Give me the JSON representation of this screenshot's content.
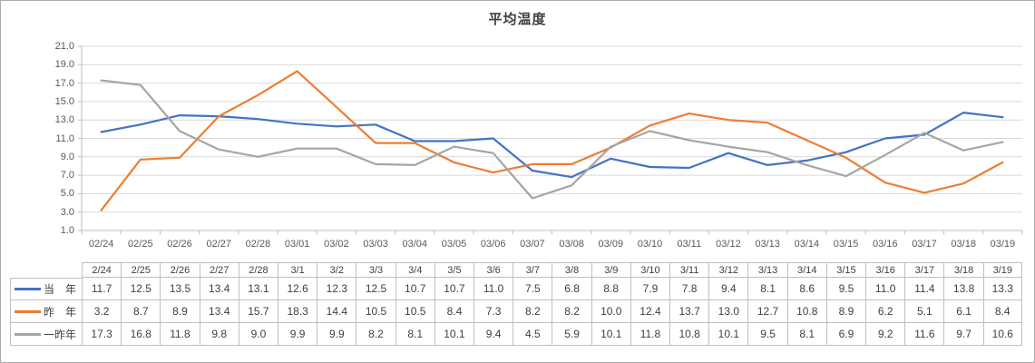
{
  "chart_data": {
    "type": "line",
    "title": "平均温度",
    "x_axis_labels": [
      "02/24",
      "02/25",
      "02/26",
      "02/27",
      "02/28",
      "03/01",
      "03/02",
      "03/03",
      "03/04",
      "03/05",
      "03/06",
      "03/07",
      "03/08",
      "03/09",
      "03/10",
      "03/11",
      "03/12",
      "03/13",
      "03/14",
      "03/15",
      "03/16",
      "03/17",
      "03/18",
      "03/19"
    ],
    "table_columns": [
      "2/24",
      "2/25",
      "2/26",
      "2/27",
      "2/28",
      "3/1",
      "3/2",
      "3/3",
      "3/4",
      "3/5",
      "3/6",
      "3/7",
      "3/8",
      "3/9",
      "3/10",
      "3/11",
      "3/12",
      "3/13",
      "3/14",
      "3/15",
      "3/16",
      "3/17",
      "3/18",
      "3/19"
    ],
    "series": [
      {
        "name": "当　年",
        "color": "#4472C4",
        "values": [
          11.7,
          12.5,
          13.5,
          13.4,
          13.1,
          12.6,
          12.3,
          12.5,
          10.7,
          10.7,
          11.0,
          7.5,
          6.8,
          8.8,
          7.9,
          7.8,
          9.4,
          8.1,
          8.6,
          9.5,
          11.0,
          11.4,
          13.8,
          13.3
        ]
      },
      {
        "name": "昨　年",
        "color": "#ED7D31",
        "values": [
          3.2,
          8.7,
          8.9,
          13.4,
          15.7,
          18.3,
          14.4,
          10.5,
          10.5,
          8.4,
          7.3,
          8.2,
          8.2,
          10.0,
          12.4,
          13.7,
          13.0,
          12.7,
          10.8,
          8.9,
          6.2,
          5.1,
          6.1,
          8.4
        ]
      },
      {
        "name": "一昨年",
        "color": "#A5A5A5",
        "values": [
          17.3,
          16.8,
          11.8,
          9.8,
          9.0,
          9.9,
          9.9,
          8.2,
          8.1,
          10.1,
          9.4,
          4.5,
          5.9,
          10.1,
          11.8,
          10.8,
          10.1,
          9.5,
          8.1,
          6.9,
          9.2,
          11.6,
          9.7,
          10.6
        ]
      }
    ],
    "ylim": [
      1.0,
      21.0
    ],
    "y_tick_step": 2.0,
    "y_tick_labels": [
      "21.0",
      "19.0",
      "17.0",
      "15.0",
      "13.0",
      "11.0",
      "9.0",
      "7.0",
      "5.0",
      "3.0",
      "1.0"
    ],
    "grid": true,
    "legend_position": "data-table-left",
    "colors": {
      "grid_line": "#D9D9D9",
      "axis_line": "#BFBFBF",
      "axis_text": "#595959",
      "table_text": "#404040",
      "table_border": "#BFBFBF",
      "title_text": "#404040"
    }
  }
}
